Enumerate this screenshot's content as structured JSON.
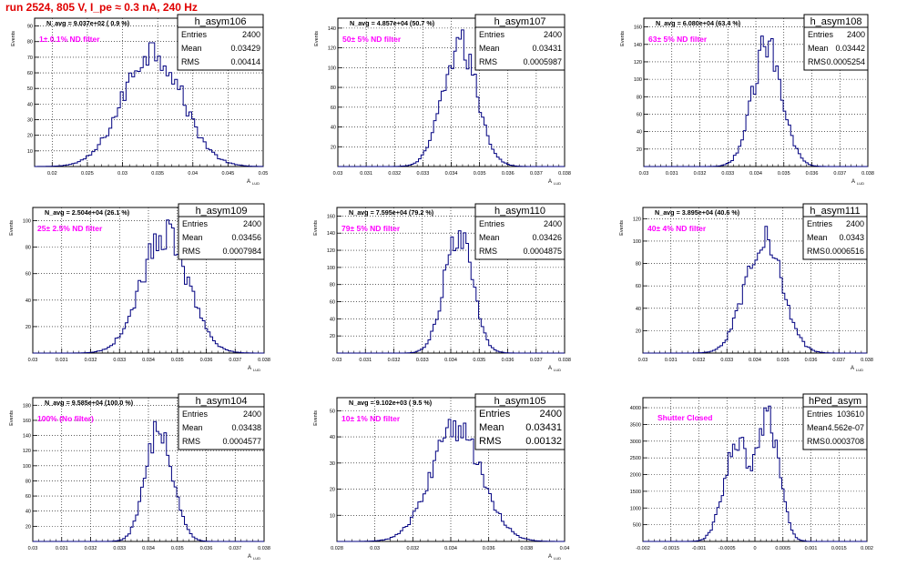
{
  "page_title": "run 2524,   805 V, I_pe ≈ 0.3 nA, 240 Hz",
  "colors": {
    "hist_line": "#000080",
    "annotation": "#ff00ff",
    "title": "#e00000",
    "grid": "#000000"
  },
  "chart_data": [
    {
      "type": "histogram",
      "name": "h_asym106",
      "ylabel": "Events",
      "xlabel": "A",
      "xlabel_sub": "LUD",
      "annotation": "1± 0.1% ND filter",
      "navg": "N_avg = 9.037e+02 ( 0.9 %)",
      "stats": {
        "entries": "2400",
        "mean": "0.03429",
        "rms": "0.00414"
      },
      "xlim": [
        0.0175,
        0.05
      ],
      "ylim": [
        0,
        95
      ],
      "xticks": [
        0.02,
        0.025,
        0.03,
        0.035,
        0.04,
        0.045,
        0.05
      ],
      "xtick_labels": [
        "0.02",
        "0.025",
        "0.03",
        "0.035",
        "0.04",
        "0.045",
        "0.05"
      ],
      "yticks": [
        10,
        20,
        30,
        40,
        50,
        60,
        70,
        80,
        90
      ],
      "peak": 85
    },
    {
      "type": "histogram",
      "name": "h_asym107",
      "ylabel": "Events",
      "xlabel": "A",
      "xlabel_sub": "LUD",
      "annotation": "50± 5% ND filter",
      "navg": "N_avg = 4.857e+04 (50.7 %)",
      "stats": {
        "entries": "2400",
        "mean": "0.03431",
        "rms": "0.0005987"
      },
      "xlim": [
        0.03,
        0.038
      ],
      "ylim": [
        0,
        150
      ],
      "xticks": [
        0.03,
        0.031,
        0.032,
        0.033,
        0.034,
        0.035,
        0.036,
        0.037,
        0.038
      ],
      "xtick_labels": [
        "0.03",
        "0.031",
        "0.032",
        "0.033",
        "0.034",
        "0.035",
        "0.036",
        "0.037",
        "0.038"
      ],
      "yticks": [
        20,
        40,
        60,
        80,
        100,
        120,
        140
      ],
      "peak": 140
    },
    {
      "type": "histogram",
      "name": "h_asym108",
      "ylabel": "Events",
      "xlabel": "A",
      "xlabel_sub": "LUD",
      "annotation": "63± 5% ND filter",
      "navg": "N_avg = 6.080e+04 (63.4 %)",
      "stats": {
        "entries": "2400",
        "mean": "0.03442",
        "rms": "0.0005254"
      },
      "xlim": [
        0.03,
        0.038
      ],
      "ylim": [
        0,
        170
      ],
      "xticks": [
        0.03,
        0.031,
        0.032,
        0.033,
        0.034,
        0.035,
        0.036,
        0.037,
        0.038
      ],
      "xtick_labels": [
        "0.03",
        "0.031",
        "0.032",
        "0.033",
        "0.034",
        "0.035",
        "0.036",
        "0.037",
        "0.038"
      ],
      "yticks": [
        20,
        40,
        60,
        80,
        100,
        120,
        140,
        160
      ],
      "peak": 160
    },
    {
      "type": "histogram",
      "name": "h_asym109",
      "ylabel": "Events",
      "xlabel": "A",
      "xlabel_sub": "LUD",
      "annotation": "25± 2.5% ND filter",
      "navg": "N_avg = 2.504e+04 (26.1 %)",
      "stats": {
        "entries": "2400",
        "mean": "0.03456",
        "rms": "0.0007984"
      },
      "xlim": [
        0.03,
        0.038
      ],
      "ylim": [
        0,
        110
      ],
      "xticks": [
        0.03,
        0.031,
        0.032,
        0.033,
        0.034,
        0.035,
        0.036,
        0.037,
        0.038
      ],
      "xtick_labels": [
        "0.03",
        "0.031",
        "0.032",
        "0.033",
        "0.034",
        "0.035",
        "0.036",
        "0.037",
        "0.038"
      ],
      "yticks": [
        20,
        40,
        60,
        80,
        100
      ],
      "peak": 102
    },
    {
      "type": "histogram",
      "name": "h_asym110",
      "ylabel": "Events",
      "xlabel": "A",
      "xlabel_sub": "LUD",
      "annotation": "79± 5% ND filter",
      "navg": "N_avg = 7.595e+04 (79.2 %)",
      "stats": {
        "entries": "2400",
        "mean": "0.03426",
        "rms": "0.0004875"
      },
      "xlim": [
        0.03,
        0.038
      ],
      "ylim": [
        0,
        170
      ],
      "xticks": [
        0.03,
        0.031,
        0.032,
        0.033,
        0.034,
        0.035,
        0.036,
        0.037,
        0.038
      ],
      "xtick_labels": [
        "0.03",
        "0.031",
        "0.032",
        "0.033",
        "0.034",
        "0.035",
        "0.036",
        "0.037",
        "0.038"
      ],
      "yticks": [
        20,
        40,
        60,
        80,
        100,
        120,
        140,
        160
      ],
      "peak": 160
    },
    {
      "type": "histogram",
      "name": "h_asym111",
      "ylabel": "Events",
      "xlabel": "A",
      "xlabel_sub": "LUD",
      "annotation": "40± 4% ND filter",
      "navg": "N_avg = 3.895e+04 (40.6 %)",
      "stats": {
        "entries": "2400",
        "mean": "0.0343",
        "rms": "0.0006516"
      },
      "xlim": [
        0.03,
        0.038
      ],
      "ylim": [
        0,
        130
      ],
      "xticks": [
        0.03,
        0.031,
        0.032,
        0.033,
        0.034,
        0.035,
        0.036,
        0.037,
        0.038
      ],
      "xtick_labels": [
        "0.03",
        "0.031",
        "0.032",
        "0.033",
        "0.034",
        "0.035",
        "0.036",
        "0.037",
        "0.038"
      ],
      "yticks": [
        20,
        40,
        60,
        80,
        100,
        120
      ],
      "peak": 118
    },
    {
      "type": "histogram",
      "name": "h_asym104",
      "ylabel": "Events",
      "xlabel": "A",
      "xlabel_sub": "LUD",
      "annotation": "100% (No filter)",
      "navg": "N_avg = 9.585e+04 (100.0 %)",
      "stats": {
        "entries": "2400",
        "mean": "0.03438",
        "rms": "0.0004577"
      },
      "xlim": [
        0.03,
        0.038
      ],
      "ylim": [
        0,
        190
      ],
      "xticks": [
        0.03,
        0.031,
        0.032,
        0.033,
        0.034,
        0.035,
        0.036,
        0.037,
        0.038
      ],
      "xtick_labels": [
        "0.03",
        "0.031",
        "0.032",
        "0.033",
        "0.034",
        "0.035",
        "0.036",
        "0.037",
        "0.038"
      ],
      "yticks": [
        20,
        40,
        60,
        80,
        100,
        120,
        140,
        160,
        180
      ],
      "peak": 172
    },
    {
      "type": "histogram",
      "name": "h_asym105",
      "ylabel": "Events",
      "xlabel": "A",
      "xlabel_sub": "LUD",
      "annotation": "10± 1% ND filter",
      "navg": "N_avg = 9.102e+03 ( 9.5 %)",
      "stats": {
        "entries": "2400",
        "mean": "0.03431",
        "rms": "0.00132"
      },
      "xlim": [
        0.028,
        0.04
      ],
      "ylim": [
        0,
        55
      ],
      "xticks": [
        0.028,
        0.03,
        0.032,
        0.034,
        0.036,
        0.038,
        0.04
      ],
      "xtick_labels": [
        "0.028",
        "0.03",
        "0.032",
        "0.034",
        "0.036",
        "0.038",
        "0.04"
      ],
      "yticks": [
        10,
        20,
        30,
        40,
        50
      ],
      "peak": 50
    },
    {
      "type": "histogram",
      "name": "hPed_asym",
      "ylabel": "",
      "xlabel": "",
      "xlabel_sub": "",
      "annotation": "Shutter Closed",
      "navg": "",
      "stats": {
        "entries": "103610",
        "mean": "4.562e-07",
        "rms": "0.0003708"
      },
      "xlim": [
        -0.002,
        0.002
      ],
      "ylim": [
        0,
        4300
      ],
      "xticks": [
        -0.002,
        -0.0015,
        -0.001,
        -0.0005,
        0,
        0.0005,
        0.001,
        0.0015,
        0.002
      ],
      "xtick_labels": [
        "-0.002",
        "-0.0015",
        "-0.001",
        "-0.0005",
        "0",
        "0.0005",
        "0.001",
        "0.0015",
        "0.002"
      ],
      "yticks": [
        500,
        1000,
        1500,
        2000,
        2500,
        3000,
        3500,
        4000
      ],
      "peak": 4050
    }
  ]
}
